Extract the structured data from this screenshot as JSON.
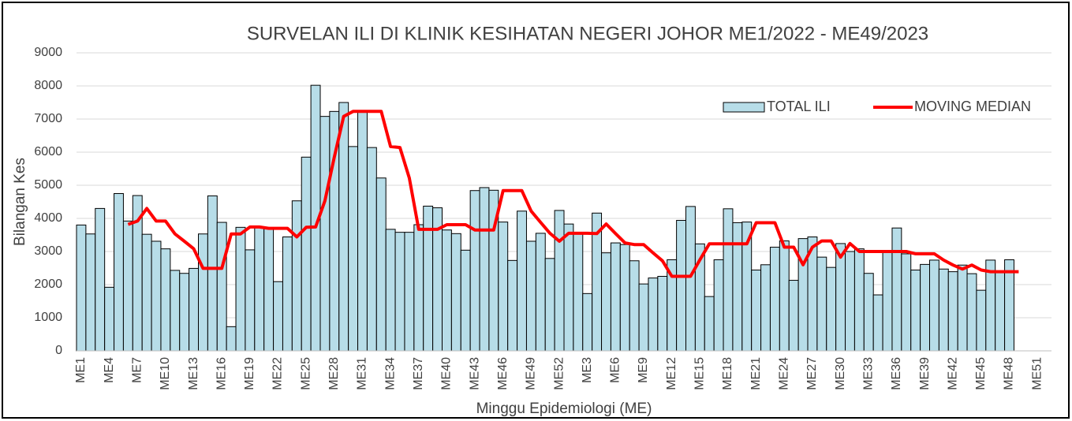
{
  "chart_data": {
    "type": "bar_line",
    "title": "SURVELAN ILI DI KLINIK KESIHATAN NEGERI JOHOR ME1/2022 - ME49/2023",
    "x_label": "Minggu Epidemiologi (ME)",
    "y_label": "Bilangan Kes",
    "categories": [
      "ME1",
      null,
      null,
      "ME4",
      null,
      null,
      "ME7",
      null,
      null,
      "ME10",
      null,
      null,
      "ME13",
      null,
      null,
      "ME16",
      null,
      null,
      "ME19",
      null,
      null,
      "ME22",
      null,
      null,
      "ME25",
      null,
      null,
      "ME28",
      null,
      null,
      "ME31",
      null,
      null,
      "ME34",
      null,
      null,
      "ME37",
      null,
      null,
      "ME40",
      null,
      null,
      "ME43",
      null,
      null,
      "ME46",
      null,
      null,
      "ME49",
      null,
      null,
      "ME52",
      null,
      null,
      "ME3",
      null,
      null,
      "ME6",
      null,
      null,
      "ME9",
      null,
      null,
      "ME12",
      null,
      null,
      "ME15",
      null,
      null,
      "ME18",
      null,
      null,
      "ME21",
      null,
      null,
      "ME24",
      null,
      null,
      "ME27",
      null,
      null,
      "ME30",
      null,
      null,
      "ME33",
      null,
      null,
      "ME36",
      null,
      null,
      "ME39",
      null,
      null,
      "ME42",
      null,
      null,
      "ME45",
      null,
      null,
      "ME48",
      null,
      null,
      "ME51",
      null
    ],
    "series": [
      {
        "name": "TOTAL ILI",
        "type": "bar",
        "color": "#b7dde8",
        "values": [
          3800,
          3530,
          4300,
          1920,
          4750,
          3920,
          4690,
          3520,
          3310,
          3080,
          2430,
          2340,
          2490,
          3530,
          4680,
          3880,
          730,
          3730,
          3050,
          3740,
          3700,
          2090,
          3440,
          4530,
          5850,
          8020,
          7080,
          7230,
          7500,
          6170,
          7230,
          6140,
          5220,
          3670,
          3580,
          3580,
          3810,
          4370,
          4320,
          3650,
          3540,
          3040,
          4840,
          4930,
          4850,
          3890,
          2730,
          4220,
          3310,
          3550,
          2790,
          4240,
          3830,
          3540,
          1730,
          4160,
          2960,
          3260,
          3210,
          2720,
          2020,
          2200,
          2250,
          2750,
          3940,
          4360,
          3230,
          1640,
          2750,
          4290,
          3870,
          3890,
          2440,
          2600,
          3130,
          3320,
          2130,
          3390,
          3440,
          2830,
          2520,
          3240,
          3000,
          3080,
          2340,
          1690,
          3010,
          3710,
          2930,
          2440,
          2610,
          2740,
          2470,
          2390,
          2590,
          2330,
          1830,
          2740,
          2380,
          2750,
          null,
          null,
          null,
          null
        ]
      },
      {
        "name": "MOVING MEDIAN",
        "type": "line",
        "color": "#ff0000",
        "values": [
          null,
          null,
          null,
          null,
          null,
          3820,
          3920,
          4300,
          3920,
          3920,
          3530,
          3310,
          3080,
          2490,
          2490,
          2490,
          3530,
          3530,
          3740,
          3740,
          3700,
          3700,
          3700,
          3440,
          3730,
          3740,
          4530,
          5850,
          7080,
          7230,
          7230,
          7230,
          7230,
          6170,
          6140,
          5220,
          3670,
          3670,
          3670,
          3810,
          3810,
          3810,
          3650,
          3650,
          3650,
          4840,
          4840,
          4840,
          4220,
          3880,
          3550,
          3310,
          3550,
          3550,
          3550,
          3540,
          3830,
          3540,
          3260,
          3210,
          3210,
          2960,
          2720,
          2250,
          2250,
          2250,
          2750,
          3230,
          3230,
          3230,
          3230,
          3230,
          3870,
          3870,
          3870,
          3130,
          3130,
          2600,
          3130,
          3320,
          3320,
          2830,
          3240,
          3000,
          3000,
          3000,
          3000,
          3000,
          3000,
          2930,
          2930,
          2930,
          2740,
          2590,
          2470,
          2590,
          2440,
          2390,
          2390,
          2390,
          2390,
          null,
          null,
          null
        ]
      }
    ],
    "ylim": [
      0,
      9000
    ],
    "yticks": [
      0,
      1000,
      2000,
      3000,
      4000,
      5000,
      6000,
      7000,
      8000,
      9000
    ],
    "grid": true,
    "legend": "upper right"
  }
}
